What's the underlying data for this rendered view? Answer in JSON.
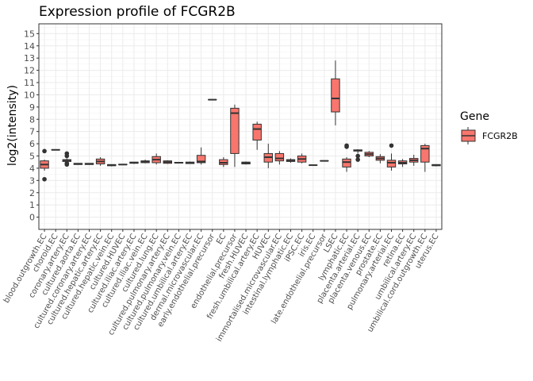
{
  "chart_data": {
    "type": "box",
    "title": "Expression profile of FCGR2B",
    "xlabel": "",
    "ylabel": "log2(intensity)",
    "ylim": [
      -1,
      15.8
    ],
    "yticks": [
      0,
      1,
      2,
      3,
      4,
      5,
      6,
      7,
      8,
      9,
      10,
      11,
      12,
      13,
      14,
      15
    ],
    "grid": true,
    "legend": {
      "title": "Gene",
      "position": "right",
      "entries": [
        {
          "label": "FCGR2B",
          "color": "#F8766D"
        }
      ]
    },
    "fill_color": "#F8766D",
    "categories": [
      "blood.outgrowth.EC",
      "choroid.EC",
      "coronary.artery.EC",
      "cultured.aorta.EC",
      "cultured.coronary.artery.EC",
      "cultured.hepatic.artery.EC",
      "cultured.hepatic.vein.EC",
      "cultured.HUVEC",
      "cultured.iliac.artery.EC",
      "cultured.iliac.vein.EC",
      "cultured.lung.EC",
      "cultured.pulmonary.artery.EC",
      "cultured.pulmonary.vein.EC",
      "cultured.umbilical.artery.EC",
      "dermal.microvascular.EC",
      "early.endothelial.precursor",
      "EC",
      "endothelial.precursor",
      "fresh.HUVEC",
      "fresh.umbilical.artery.EC",
      "HUVEC",
      "immortalised.microvascular.EC",
      "intestinal.lymphatic.EC",
      "iPSC.EC",
      "iris.EC",
      "late.endothelial.precursor",
      "LSEC",
      "lymphatic.EC",
      "placenta.arterial.EC",
      "placenta.venous.EC",
      "prostate.EC",
      "pulmonary.arterial.EC",
      "retina.EC",
      "umbilical.artery.EC",
      "umbilical.cord.outgrowth.EC",
      "uterus.EC"
    ],
    "series": [
      {
        "name": "FCGR2B",
        "boxes": [
          {
            "min": 3.8,
            "q1": 4.0,
            "median": 4.3,
            "q3": 4.6,
            "max": 4.7,
            "outliers": [
              5.4,
              3.1
            ]
          },
          {
            "min": 5.5,
            "q1": 5.5,
            "median": 5.5,
            "q3": 5.5,
            "max": 5.5,
            "outliers": []
          },
          {
            "min": 4.5,
            "q1": 4.55,
            "median": 4.65,
            "q3": 4.7,
            "max": 4.8,
            "outliers": [
              5.2,
              5.0,
              4.3,
              4.4
            ]
          },
          {
            "min": 4.3,
            "q1": 4.3,
            "median": 4.35,
            "q3": 4.4,
            "max": 4.4,
            "outliers": []
          },
          {
            "min": 4.3,
            "q1": 4.3,
            "median": 4.35,
            "q3": 4.4,
            "max": 4.4,
            "outliers": []
          },
          {
            "min": 4.2,
            "q1": 4.35,
            "median": 4.55,
            "q3": 4.75,
            "max": 4.9,
            "outliers": []
          },
          {
            "min": 4.15,
            "q1": 4.2,
            "median": 4.25,
            "q3": 4.3,
            "max": 4.3,
            "outliers": []
          },
          {
            "min": 4.25,
            "q1": 4.28,
            "median": 4.3,
            "q3": 4.32,
            "max": 4.35,
            "outliers": []
          },
          {
            "min": 4.35,
            "q1": 4.4,
            "median": 4.45,
            "q3": 4.5,
            "max": 4.5,
            "outliers": []
          },
          {
            "min": 4.4,
            "q1": 4.45,
            "median": 4.55,
            "q3": 4.6,
            "max": 4.7,
            "outliers": []
          },
          {
            "min": 4.3,
            "q1": 4.45,
            "median": 4.7,
            "q3": 4.95,
            "max": 5.2,
            "outliers": []
          },
          {
            "min": 4.35,
            "q1": 4.4,
            "median": 4.5,
            "q3": 4.6,
            "max": 4.65,
            "outliers": []
          },
          {
            "min": 4.4,
            "q1": 4.42,
            "median": 4.45,
            "q3": 4.48,
            "max": 4.5,
            "outliers": []
          },
          {
            "min": 4.35,
            "q1": 4.38,
            "median": 4.45,
            "q3": 4.5,
            "max": 4.55,
            "outliers": []
          },
          {
            "min": 4.3,
            "q1": 4.45,
            "median": 4.55,
            "q3": 5.05,
            "max": 5.7,
            "outliers": []
          },
          {
            "min": 9.6,
            "q1": 9.6,
            "median": 9.6,
            "q3": 9.6,
            "max": 9.6,
            "outliers": []
          },
          {
            "min": 4.1,
            "q1": 4.3,
            "median": 4.45,
            "q3": 4.7,
            "max": 4.9,
            "outliers": []
          },
          {
            "min": 4.1,
            "q1": 5.2,
            "median": 8.5,
            "q3": 8.9,
            "max": 9.2,
            "outliers": []
          },
          {
            "min": 4.3,
            "q1": 4.35,
            "median": 4.45,
            "q3": 4.5,
            "max": 4.55,
            "outliers": []
          },
          {
            "min": 5.5,
            "q1": 6.3,
            "median": 7.2,
            "q3": 7.6,
            "max": 7.8,
            "outliers": []
          },
          {
            "min": 4.0,
            "q1": 4.5,
            "median": 4.9,
            "q3": 5.2,
            "max": 6.0,
            "outliers": []
          },
          {
            "min": 4.3,
            "q1": 4.6,
            "median": 4.8,
            "q3": 5.2,
            "max": 5.4,
            "outliers": []
          },
          {
            "min": 4.45,
            "q1": 4.55,
            "median": 4.65,
            "q3": 4.7,
            "max": 4.8,
            "outliers": []
          },
          {
            "min": 4.4,
            "q1": 4.5,
            "median": 4.75,
            "q3": 5.0,
            "max": 5.2,
            "outliers": []
          },
          {
            "min": 4.25,
            "q1": 4.25,
            "median": 4.25,
            "q3": 4.25,
            "max": 4.25,
            "outliers": []
          },
          {
            "min": 4.6,
            "q1": 4.6,
            "median": 4.6,
            "q3": 4.6,
            "max": 4.6,
            "outliers": []
          },
          {
            "min": 7.5,
            "q1": 8.6,
            "median": 9.7,
            "q3": 11.3,
            "max": 12.8,
            "outliers": []
          },
          {
            "min": 3.7,
            "q1": 4.1,
            "median": 4.5,
            "q3": 4.75,
            "max": 4.9,
            "outliers": [
              5.85,
              5.75
            ]
          },
          {
            "min": 5.2,
            "q1": 5.4,
            "median": 5.45,
            "q3": 5.5,
            "max": 5.55,
            "outliers": [
              5.0,
              4.7
            ]
          },
          {
            "min": 4.9,
            "q1": 5.0,
            "median": 5.15,
            "q3": 5.3,
            "max": 5.4,
            "outliers": []
          },
          {
            "min": 4.4,
            "q1": 4.65,
            "median": 4.8,
            "q3": 4.95,
            "max": 5.15,
            "outliers": []
          },
          {
            "min": 3.8,
            "q1": 4.1,
            "median": 4.45,
            "q3": 4.65,
            "max": 5.2,
            "outliers": [
              5.85
            ]
          },
          {
            "min": 4.1,
            "q1": 4.35,
            "median": 4.45,
            "q3": 4.6,
            "max": 4.75,
            "outliers": []
          },
          {
            "min": 4.2,
            "q1": 4.5,
            "median": 4.65,
            "q3": 4.8,
            "max": 5.1,
            "outliers": []
          },
          {
            "min": 3.7,
            "q1": 4.5,
            "median": 5.6,
            "q3": 5.85,
            "max": 6.0,
            "outliers": []
          },
          {
            "min": 4.15,
            "q1": 4.2,
            "median": 4.25,
            "q3": 4.3,
            "max": 4.3,
            "outliers": []
          }
        ]
      }
    ]
  }
}
